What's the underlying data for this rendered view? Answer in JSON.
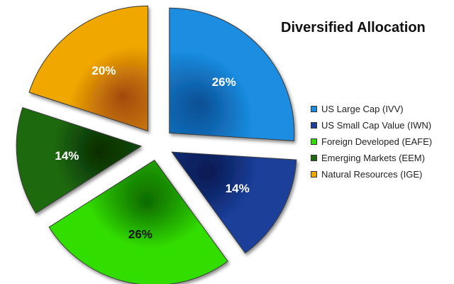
{
  "chart_data": {
    "type": "pie",
    "title": "Diversified Allocation",
    "legend_position": "right",
    "slices": [
      {
        "name": "US Large Cap (IVV)",
        "value": 26,
        "label": "26%",
        "color": "#1a8de0",
        "dark": "#0b4f94",
        "text_color": "#ffffff"
      },
      {
        "name": "US Small Cap Value (IWN)",
        "value": 14,
        "label": "14%",
        "color": "#1b3f9a",
        "dark": "#071a52",
        "text_color": "#ffffff"
      },
      {
        "name": "Foreign Developed (EAFE)",
        "value": 26,
        "label": "26%",
        "color": "#33dd00",
        "dark": "#0d6a00",
        "text_color": "#111111"
      },
      {
        "name": "Emerging Markets (EEM)",
        "value": 14,
        "label": "14%",
        "color": "#1f6a10",
        "dark": "#062d02",
        "text_color": "#ffffff"
      },
      {
        "name": "Natural Resources (IGE)",
        "value": 20,
        "label": "20%",
        "color": "#f0a800",
        "dark": "#a34a10",
        "text_color": "#ffffff"
      }
    ]
  }
}
